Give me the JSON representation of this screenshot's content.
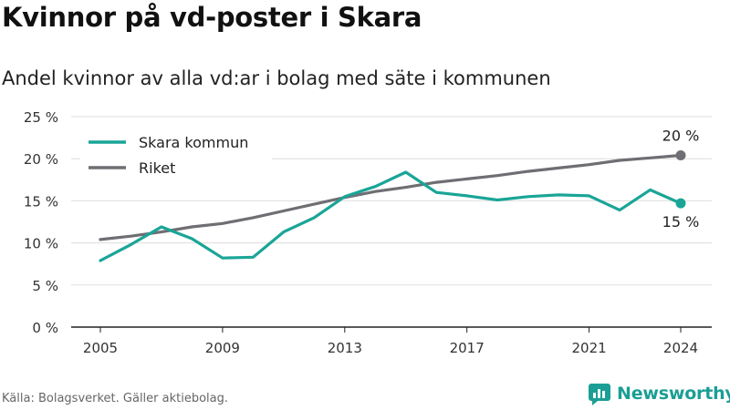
{
  "header": {
    "title": "Kvinnor på vd-poster i Skara",
    "subtitle": "Andel kvinnor av alla vd:ar i bolag med säte i kommunen"
  },
  "footer": {
    "source": "Källa: Bolagsverket. Gäller aktiebolag.",
    "brand": "Newsworthy"
  },
  "colors": {
    "skara": "#1aa597",
    "riket": "#6e6e73",
    "grid": "#dddddd",
    "axis": "#222222",
    "brand": "#1a9e95"
  },
  "chart_data": {
    "type": "line",
    "title": "Kvinnor på vd-poster i Skara",
    "subtitle": "Andel kvinnor av alla vd:ar i bolag med säte i kommunen",
    "xlabel": "",
    "ylabel": "",
    "x": [
      2005,
      2006,
      2007,
      2008,
      2009,
      2010,
      2011,
      2012,
      2013,
      2014,
      2015,
      2016,
      2017,
      2018,
      2019,
      2020,
      2021,
      2022,
      2023,
      2024
    ],
    "xticks": [
      2005,
      2009,
      2013,
      2017,
      2021,
      2024
    ],
    "xtick_labels": [
      "2005",
      "2009",
      "2013",
      "2017",
      "2021",
      "2024"
    ],
    "yticks": [
      0,
      5,
      10,
      15,
      20,
      25
    ],
    "ytick_labels": [
      "0 %",
      "5 %",
      "10 %",
      "15 %",
      "20 %",
      "25 %"
    ],
    "ylim": [
      0,
      25
    ],
    "xlim": [
      2005,
      2024
    ],
    "grid": true,
    "legend_position": "top-left",
    "series": [
      {
        "name": "Skara kommun",
        "color": "#1aa597",
        "values": [
          7.9,
          9.8,
          11.9,
          10.5,
          8.2,
          8.3,
          11.3,
          13.0,
          15.5,
          16.7,
          18.4,
          16.0,
          15.6,
          15.1,
          15.5,
          15.7,
          15.6,
          13.9,
          16.3,
          14.7
        ],
        "end_label": "15 %"
      },
      {
        "name": "Riket",
        "color": "#6e6e73",
        "values": [
          10.4,
          10.8,
          11.3,
          11.9,
          12.3,
          13.0,
          13.8,
          14.6,
          15.4,
          16.1,
          16.6,
          17.2,
          17.6,
          18.0,
          18.5,
          18.9,
          19.3,
          19.8,
          20.1,
          20.4
        ],
        "end_label": "20 %"
      }
    ]
  }
}
